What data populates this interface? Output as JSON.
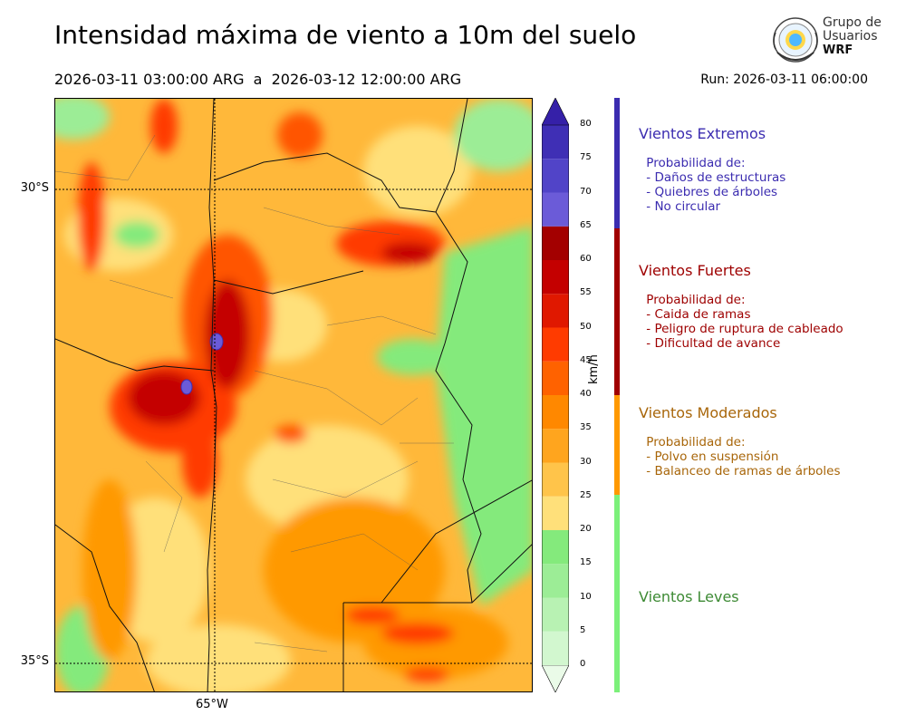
{
  "title": "Intensidad máxima de viento a 10m del suelo",
  "period": "2026-03-11 03:00:00 ARG  a  2026-03-12 12:00:00 ARG",
  "run": "Run: 2026-03-11 06:00:00",
  "logo": {
    "line1": "Grupo de",
    "line2": "Usuarios",
    "line3": "WRF"
  },
  "map": {
    "lat_labels": [
      "30°S",
      "35°S"
    ],
    "lon_labels": [
      "65°W"
    ],
    "variable": "wind speed max 10m",
    "units": "km/h"
  },
  "colorbar": {
    "unit": "km/h",
    "ticks": [
      "0",
      "5",
      "10",
      "15",
      "20",
      "25",
      "30",
      "35",
      "40",
      "45",
      "50",
      "55",
      "60",
      "65",
      "70",
      "75",
      "80"
    ],
    "colors": [
      "#eafbe8",
      "#d2f7cf",
      "#b8f2b3",
      "#9ced96",
      "#84ea7c",
      "#ffe07a",
      "#ffc44a",
      "#ffa51e",
      "#ff8800",
      "#ff6200",
      "#ff3b00",
      "#e01800",
      "#c40000",
      "#a30000",
      "#6b5bd8",
      "#5144c8",
      "#3f2fb5",
      "#3520a8"
    ]
  },
  "categories": [
    {
      "name": "Vientos Extremos",
      "color": "#3b2cb0",
      "desc": " Probabilidad de:\n - Daños de estructuras\n - Quiebres de árboles\n - No circular"
    },
    {
      "name": "Vientos Fuertes",
      "color": "#9e0000",
      "desc": " Probabilidad de:\n - Caida de ramas\n - Peligro de ruptura de cableado\n - Dificultad de avance"
    },
    {
      "name": "Vientos Moderados",
      "color": "#a8660a",
      "desc": " Probabilidad de:\n - Polvo en suspensión\n - Balanceo de ramas de árboles"
    },
    {
      "name": "Vientos Leves",
      "color": "#3d8a34",
      "desc": ""
    }
  ],
  "legend_bar_colors": [
    "#3b2cb0",
    "#a00000",
    "#ff9900",
    "#7cf07a"
  ]
}
